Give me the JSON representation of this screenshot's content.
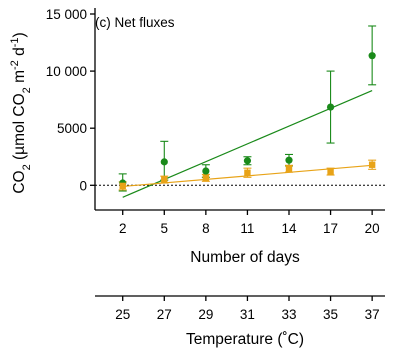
{
  "chart_data": {
    "type": "scatter",
    "panel_label": "(c) Net fluxes",
    "ylabel_main": "CO",
    "ylabel_sub": "2",
    "ylabel_unit": " (µmol CO",
    "ylabel_unit_sub": "2",
    "ylabel_unit_m": " m",
    "ylabel_unit_m_sup": "-2",
    "ylabel_unit_d": " d",
    "ylabel_unit_d_sup": "-1",
    "ylabel_close": ")",
    "xlabel": "Number of days",
    "x2label": "Temperature (˚C)",
    "x": [
      2,
      5,
      8,
      11,
      14,
      17,
      20
    ],
    "x_ticks": [
      "2",
      "5",
      "8",
      "11",
      "14",
      "17",
      "20"
    ],
    "x2_ticks": [
      "25",
      "27",
      "29",
      "31",
      "33",
      "35",
      "37"
    ],
    "y_ticks": [
      {
        "value": 0,
        "label": "0"
      },
      {
        "value": 5000,
        "label": "5000"
      },
      {
        "value": 10000,
        "label": "10 000"
      },
      {
        "value": 15000,
        "label": "15 000"
      }
    ],
    "xlim": [
      0,
      21
    ],
    "ylim": [
      -1200,
      15000
    ],
    "reference_line_y": 0,
    "series": [
      {
        "color": "#1a8a1a",
        "marker": "circle",
        "values": [
          200,
          2050,
          1250,
          2150,
          2200,
          6850,
          11350
        ],
        "err_low": [
          700,
          1600,
          550,
          350,
          500,
          3150,
          2550
        ],
        "err_high": [
          800,
          1800,
          550,
          350,
          500,
          3150,
          2600
        ],
        "trend": [
          [
            2,
            -1050
          ],
          [
            20,
            8300
          ]
        ]
      },
      {
        "color": "#e8a317",
        "marker": "square",
        "values": [
          -50,
          500,
          650,
          1100,
          1450,
          1200,
          1800
        ],
        "err_low": [
          350,
          300,
          300,
          400,
          300,
          300,
          400
        ],
        "err_high": [
          350,
          300,
          300,
          400,
          300,
          300,
          400
        ],
        "trend": [
          [
            2,
            -100
          ],
          [
            20,
            1750
          ]
        ]
      }
    ]
  }
}
